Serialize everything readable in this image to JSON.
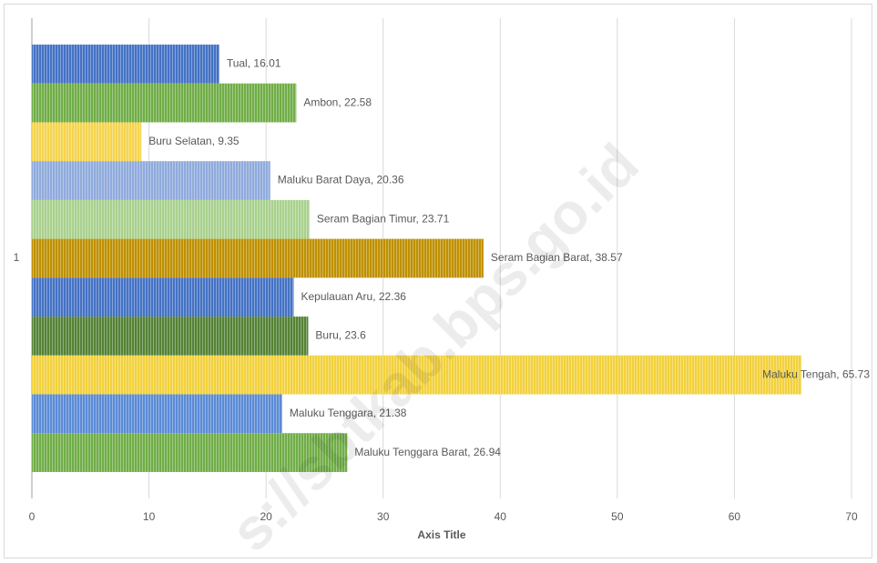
{
  "chart_data": {
    "type": "hbar",
    "categories": [
      "1"
    ],
    "x_label": "Axis Title",
    "watermark": "s://sbtkab.bps.go.id",
    "xlim": [
      0,
      70
    ],
    "xticks": [
      0,
      10,
      20,
      30,
      40,
      50,
      60,
      70
    ],
    "grid": true,
    "series": [
      {
        "color": "#4472c4",
        "values": [
          16.01
        ],
        "value_labels": [
          "Tual, 16.01"
        ]
      },
      {
        "color": "#70ad47",
        "values": [
          22.58
        ],
        "value_labels": [
          "Ambon, 22.58"
        ]
      },
      {
        "color": "#f5d44e",
        "values": [
          9.35
        ],
        "value_labels": [
          "Buru Selatan, 9.35"
        ]
      },
      {
        "color": "#8faadc",
        "values": [
          20.36
        ],
        "value_labels": [
          "Maluku Barat Daya, 20.36"
        ]
      },
      {
        "color": "#a9d18e",
        "values": [
          23.71
        ],
        "value_labels": [
          "Seram Bagian Timur, 23.71"
        ]
      },
      {
        "color": "#bf9000",
        "values": [
          38.57
        ],
        "value_labels": [
          "Seram Bagian Barat, 38.57"
        ]
      },
      {
        "color": "#4472c4",
        "values": [
          22.36
        ],
        "value_labels": [
          "Kepulauan Aru, 22.36"
        ]
      },
      {
        "color": "#548235",
        "values": [
          23.6
        ],
        "value_labels": [
          "Buru, 23.6"
        ]
      },
      {
        "color": "#f2d13c",
        "values": [
          65.73
        ],
        "value_labels": [
          "Maluku Tengah, 65.73"
        ]
      },
      {
        "color": "#5b8bd6",
        "values": [
          21.38
        ],
        "value_labels": [
          "Maluku Tenggara, 21.38"
        ]
      },
      {
        "color": "#70ad47",
        "values": [
          26.94
        ],
        "value_labels": [
          "Maluku Tenggara Barat, 26.94"
        ]
      }
    ]
  }
}
